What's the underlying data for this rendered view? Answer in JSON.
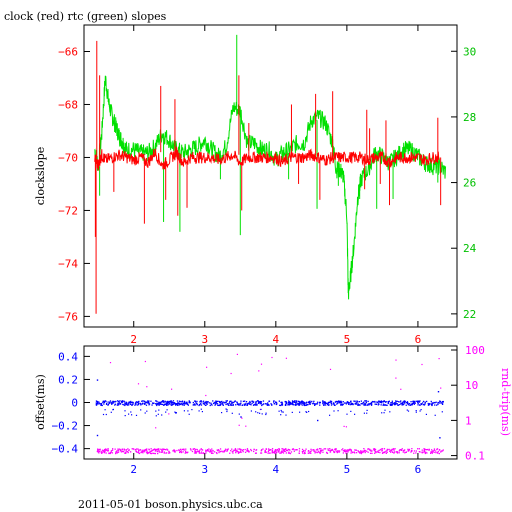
{
  "chart_data": [
    {
      "type": "line",
      "title": "clock (red) rtc (green) slopes",
      "ylabel": "clockslope",
      "xlim": [
        1.3,
        6.55
      ],
      "ylim": [
        -76.4,
        -65.0
      ],
      "x_ticks": [
        2,
        3,
        4,
        5,
        6
      ],
      "y_ticks": [
        -66,
        -68,
        -70,
        -72,
        -74,
        -76
      ],
      "y2lim": [
        21.6,
        30.8
      ],
      "y2_ticks": [
        22,
        24,
        26,
        28,
        30
      ],
      "colors": {
        "clock": "#ff0000",
        "rtc": "#00e000",
        "axis_left": "#ff0000",
        "axis_right": "#00c000"
      },
      "series": [
        {
          "name": "clock",
          "axis": "left",
          "x": [
            1.45,
            1.5,
            1.55,
            1.6,
            1.7,
            1.8,
            1.9,
            2.0,
            2.1,
            2.2,
            2.3,
            2.4,
            2.5,
            2.6,
            2.7,
            2.8,
            2.9,
            3.0,
            3.1,
            3.2,
            3.3,
            3.4,
            3.5,
            3.6,
            3.7,
            3.8,
            3.9,
            4.0,
            4.1,
            4.2,
            4.3,
            4.4,
            4.5,
            4.6,
            4.7,
            4.8,
            4.9,
            5.0,
            5.1,
            5.2,
            5.3,
            5.4,
            5.5,
            5.6,
            5.7,
            5.8,
            5.9,
            6.0,
            6.1,
            6.2,
            6.3
          ],
          "y": [
            -70.0,
            -70.3,
            -69.9,
            -70.1,
            -70.0,
            -69.9,
            -70.0,
            -70.1,
            -70.0,
            -70.2,
            -69.8,
            -70.3,
            -70.1,
            -69.8,
            -70.2,
            -70.0,
            -70.0,
            -70.0,
            -70.0,
            -70.1,
            -70.0,
            -69.9,
            -70.2,
            -70.0,
            -70.0,
            -70.0,
            -70.0,
            -70.0,
            -70.2,
            -70.0,
            -70.0,
            -70.0,
            -69.9,
            -70.0,
            -70.1,
            -70.0,
            -70.0,
            -70.0,
            -70.0,
            -70.0,
            -70.1,
            -70.0,
            -70.0,
            -70.2,
            -70.0,
            -70.0,
            -70.0,
            -70.0,
            -70.1,
            -70.0,
            -70.0
          ],
          "spikes": [
            {
              "x": 1.46,
              "y": -73.0
            },
            {
              "x": 1.47,
              "y": -75.9
            },
            {
              "x": 1.48,
              "y": -65.6
            },
            {
              "x": 1.52,
              "y": -66.9
            },
            {
              "x": 1.72,
              "y": -71.3
            },
            {
              "x": 2.15,
              "y": -72.5
            },
            {
              "x": 2.38,
              "y": -67.3
            },
            {
              "x": 2.45,
              "y": -71.6
            },
            {
              "x": 2.58,
              "y": -67.8
            },
            {
              "x": 2.62,
              "y": -72.2
            },
            {
              "x": 2.75,
              "y": -71.9
            },
            {
              "x": 3.48,
              "y": -66.9
            },
            {
              "x": 3.52,
              "y": -72.0
            },
            {
              "x": 3.62,
              "y": -68.7
            },
            {
              "x": 4.22,
              "y": -68.0
            },
            {
              "x": 4.32,
              "y": -71.0
            },
            {
              "x": 4.56,
              "y": -67.6
            },
            {
              "x": 4.62,
              "y": -71.6
            },
            {
              "x": 4.8,
              "y": -67.5
            },
            {
              "x": 5.25,
              "y": -71.2
            },
            {
              "x": 5.28,
              "y": -68.2
            },
            {
              "x": 5.32,
              "y": -68.9
            },
            {
              "x": 5.47,
              "y": -71.0
            },
            {
              "x": 5.55,
              "y": -68.6
            },
            {
              "x": 5.6,
              "y": -71.8
            },
            {
              "x": 6.28,
              "y": -68.5
            },
            {
              "x": 6.32,
              "y": -71.8
            }
          ]
        },
        {
          "name": "rtc",
          "axis": "right",
          "x": [
            1.45,
            1.5,
            1.55,
            1.6,
            1.65,
            1.7,
            1.75,
            1.8,
            1.85,
            1.9,
            2.0,
            2.1,
            2.2,
            2.3,
            2.4,
            2.5,
            2.6,
            2.7,
            2.8,
            2.9,
            3.0,
            3.1,
            3.2,
            3.3,
            3.4,
            3.5,
            3.6,
            3.7,
            3.8,
            3.9,
            4.0,
            4.1,
            4.2,
            4.3,
            4.4,
            4.5,
            4.6,
            4.7,
            4.8,
            4.85,
            4.9,
            4.95,
            5.0,
            5.02,
            5.05,
            5.1,
            5.15,
            5.2,
            5.3,
            5.4,
            5.5,
            5.6,
            5.7,
            5.8,
            5.9,
            6.0,
            6.1,
            6.2,
            6.3,
            6.4
          ],
          "y": [
            27.0,
            26.5,
            27.5,
            29.2,
            28.4,
            28.0,
            27.7,
            27.4,
            27.2,
            27.0,
            27.0,
            26.9,
            26.9,
            27.1,
            27.5,
            27.3,
            27.0,
            26.9,
            27.0,
            27.1,
            27.3,
            27.0,
            26.8,
            27.1,
            28.3,
            28.2,
            27.2,
            27.2,
            27.0,
            27.0,
            26.7,
            26.9,
            27.0,
            27.2,
            27.2,
            27.9,
            28.0,
            27.8,
            27.2,
            26.4,
            26.4,
            26.2,
            25.0,
            22.6,
            23.1,
            24.1,
            25.5,
            26.1,
            26.4,
            26.9,
            26.8,
            26.6,
            26.8,
            27.0,
            27.0,
            26.8,
            26.6,
            26.5,
            26.5,
            26.3
          ],
          "spikes": [
            {
              "x": 1.52,
              "y": 25.6
            },
            {
              "x": 2.42,
              "y": 24.8
            },
            {
              "x": 2.65,
              "y": 24.5
            },
            {
              "x": 3.22,
              "y": 26.1
            },
            {
              "x": 3.45,
              "y": 30.5
            },
            {
              "x": 3.5,
              "y": 24.4
            },
            {
              "x": 4.18,
              "y": 26.1
            },
            {
              "x": 4.58,
              "y": 25.2
            },
            {
              "x": 4.88,
              "y": 25.9
            },
            {
              "x": 5.18,
              "y": 25.9
            },
            {
              "x": 5.42,
              "y": 25.2
            },
            {
              "x": 5.65,
              "y": 25.5
            },
            {
              "x": 6.28,
              "y": 26.0
            }
          ]
        }
      ]
    },
    {
      "type": "scatter",
      "ylabel": "offset(ms)",
      "y2label": "rnd-trip(ms)",
      "xlim": [
        1.3,
        6.55
      ],
      "ylim": [
        -0.49,
        0.49
      ],
      "x_ticks": [
        2,
        3,
        4,
        5,
        6
      ],
      "y_ticks": [
        0.4,
        0.2,
        0,
        -0.2,
        -0.4
      ],
      "y_tick_labels": [
        "0.4",
        "0.2",
        "0",
        "−0.2",
        "−0.4"
      ],
      "y2lim": [
        0.08,
        130
      ],
      "y2_scale": "log",
      "y2_ticks": [
        100,
        10,
        1,
        0.1
      ],
      "y2_tick_labels": [
        "100",
        "10",
        "1",
        "0.1"
      ],
      "colors": {
        "offset": "#0000ff",
        "rnd_trip": "#ff00ff",
        "axis_left": "#0000ff",
        "axis_right": "#ff00ff"
      },
      "series": [
        {
          "name": "offset",
          "axis": "left",
          "x_range": [
            1.45,
            6.35
          ],
          "center": 0.0,
          "spread": 0.02
        },
        {
          "name": "rnd-trip",
          "axis": "right",
          "x_range": [
            1.45,
            6.35
          ],
          "center": 0.14
        }
      ]
    }
  ],
  "footer": "2011-05-01 boson.physics.ubc.ca"
}
